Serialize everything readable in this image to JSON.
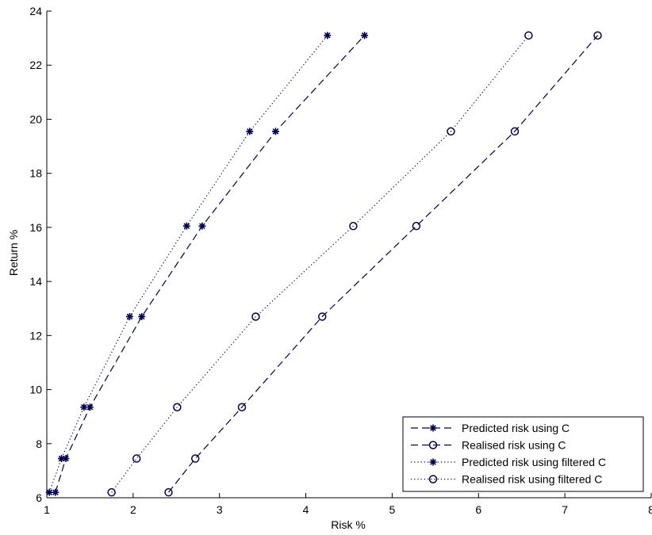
{
  "chart_data": {
    "type": "line",
    "title": "",
    "xlabel": "Risk %",
    "ylabel": "Return %",
    "xlim": [
      1,
      8
    ],
    "ylim": [
      6,
      24
    ],
    "xticks": [
      1,
      2,
      3,
      4,
      5,
      6,
      7,
      8
    ],
    "yticks": [
      6,
      8,
      10,
      12,
      14,
      16,
      18,
      20,
      22,
      24
    ],
    "grid": false,
    "legend_position": "bottom-right",
    "series": [
      {
        "name": "Predicted risk using C",
        "line_style": "dashed",
        "marker": "star",
        "color": "#000050",
        "x": [
          1.1,
          1.22,
          1.5,
          2.1,
          2.8,
          3.65,
          4.68
        ],
        "y": [
          6.2,
          7.45,
          9.35,
          12.7,
          16.05,
          19.55,
          23.1
        ]
      },
      {
        "name": "Realised risk using C",
        "line_style": "dashed",
        "marker": "circle",
        "color": "#000050",
        "x": [
          2.41,
          2.72,
          3.26,
          4.19,
          5.28,
          6.42,
          7.38
        ],
        "y": [
          6.2,
          7.45,
          9.35,
          12.7,
          16.05,
          19.55,
          23.1
        ]
      },
      {
        "name": "Predicted risk using filtered C",
        "line_style": "dotted",
        "marker": "star",
        "color": "#000050",
        "x": [
          1.03,
          1.17,
          1.43,
          1.96,
          2.62,
          3.35,
          4.25
        ],
        "y": [
          6.2,
          7.45,
          9.35,
          12.7,
          16.05,
          19.55,
          23.1
        ]
      },
      {
        "name": "Realised risk using filtered C",
        "line_style": "dotted",
        "marker": "circle",
        "color": "#000050",
        "x": [
          1.75,
          2.04,
          2.51,
          3.42,
          4.55,
          5.68,
          6.58
        ],
        "y": [
          6.2,
          7.45,
          9.35,
          12.7,
          16.05,
          19.55,
          23.1
        ]
      }
    ]
  }
}
